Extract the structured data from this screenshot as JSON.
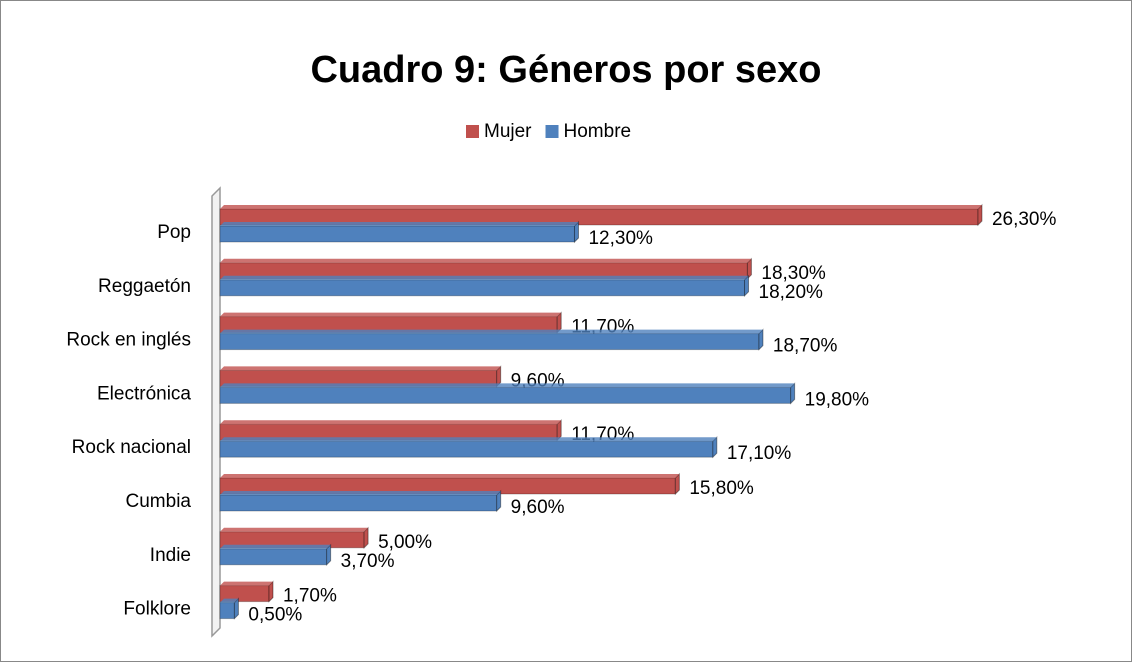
{
  "chart_data": {
    "type": "bar",
    "orientation": "horizontal",
    "title": "Cuadro 9: Géneros por sexo",
    "categories": [
      "Pop",
      "Reggaetón",
      "Rock en inglés",
      "Electrónica",
      "Rock nacional",
      "Cumbia",
      "Indie",
      "Folklore"
    ],
    "series": [
      {
        "name": "Mujer",
        "color": "#c0504d",
        "values": [
          26.3,
          18.3,
          11.7,
          9.6,
          11.7,
          15.8,
          5.0,
          1.7
        ],
        "value_labels": [
          "26,30%",
          "18,30%",
          "11,70%",
          "9,60%",
          "11,70%",
          "15,80%",
          "5,00%",
          "1,70%"
        ]
      },
      {
        "name": "Hombre",
        "color": "#4f81bd",
        "values": [
          12.3,
          18.2,
          18.7,
          19.8,
          17.1,
          9.6,
          3.7,
          0.5
        ],
        "value_labels": [
          "12,30%",
          "18,20%",
          "18,70%",
          "19,80%",
          "17,10%",
          "9,60%",
          "3,70%",
          "0,50%"
        ]
      }
    ],
    "legend": "top"
  }
}
